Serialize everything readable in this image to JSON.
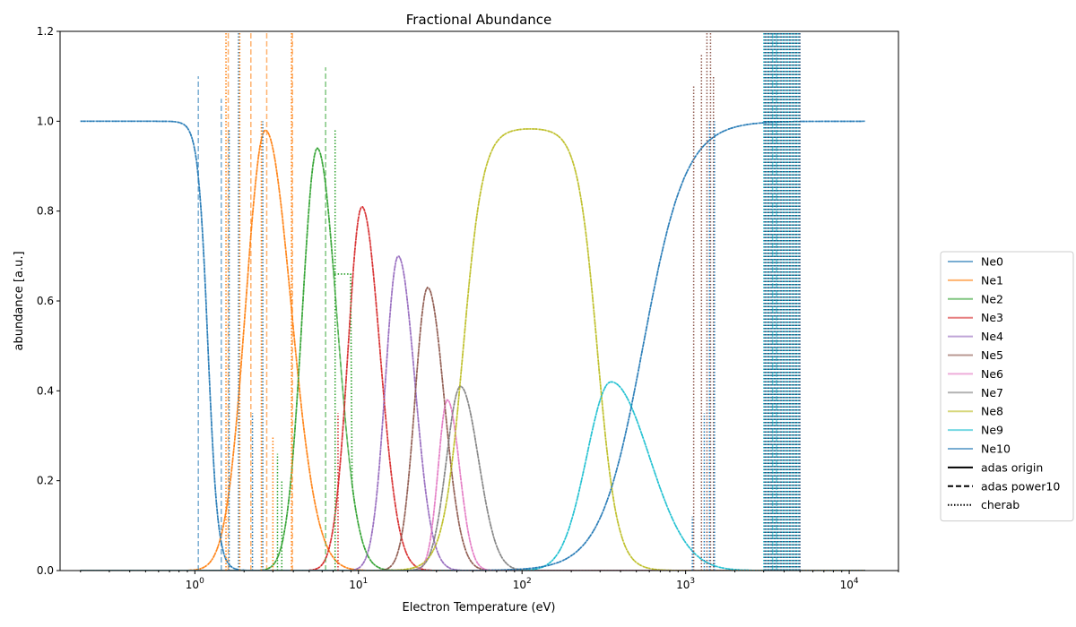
{
  "chart_data": {
    "type": "line",
    "title": "Fractional Abundance",
    "xlabel": "Electron Temperature (eV)",
    "ylabel": "abundance [a.u.]",
    "xscale": "log",
    "xlim": [
      0.15,
      20000
    ],
    "ylim": [
      0,
      1.2
    ],
    "xticks": [
      {
        "value": 1,
        "base": "10",
        "exp": "0"
      },
      {
        "value": 10,
        "base": "10",
        "exp": "1"
      },
      {
        "value": 100,
        "base": "10",
        "exp": "2"
      },
      {
        "value": 1000,
        "base": "10",
        "exp": "3"
      },
      {
        "value": 10000,
        "base": "10",
        "exp": "4"
      }
    ],
    "yticks": [
      "0.0",
      "0.2",
      "0.4",
      "0.6",
      "0.8",
      "1.0",
      "1.2"
    ],
    "legend_position": "outside-right",
    "series": [
      {
        "name": "Ne0",
        "color": "#1f77b4",
        "peak_T": 0.2,
        "peak": 1.0
      },
      {
        "name": "Ne1",
        "color": "#ff7f0e",
        "peak_T": 2.7,
        "peak": 0.98
      },
      {
        "name": "Ne2",
        "color": "#2ca02c",
        "peak_T": 5.6,
        "peak": 0.94
      },
      {
        "name": "Ne3",
        "color": "#d62728",
        "peak_T": 10.5,
        "peak": 0.81
      },
      {
        "name": "Ne4",
        "color": "#9467bd",
        "peak_T": 17.5,
        "peak": 0.7
      },
      {
        "name": "Ne5",
        "color": "#8c564b",
        "peak_T": 26.5,
        "peak": 0.63
      },
      {
        "name": "Ne6",
        "color": "#e377c2",
        "peak_T": 35,
        "peak": 0.38
      },
      {
        "name": "Ne7",
        "color": "#7f7f7f",
        "peak_T": 42,
        "peak": 0.41
      },
      {
        "name": "Ne8",
        "color": "#bcbd22",
        "peak_T": 125,
        "peak": 0.985
      },
      {
        "name": "Ne9",
        "color": "#17becf",
        "peak_T": 350,
        "peak": 0.42
      },
      {
        "name": "Ne10",
        "color": "#1f77b4",
        "peak_T": 12500,
        "peak": 1.0
      }
    ],
    "linestyles": [
      {
        "name": "adas origin",
        "style": "solid"
      },
      {
        "name": "adas power10",
        "style": "dashed"
      },
      {
        "name": "cherab",
        "style": "dotted"
      }
    ]
  }
}
